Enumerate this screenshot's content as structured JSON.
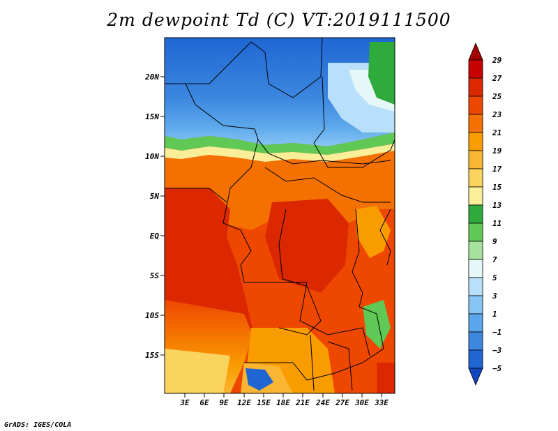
{
  "title": "2m dewpoint Td (C) VT:2019111500",
  "credit": "GrADS: IGES/COLA",
  "map": {
    "lat_labels": [
      "20N",
      "15N",
      "10N",
      "5N",
      "EQ",
      "5S",
      "10S",
      "15S"
    ],
    "lon_labels": [
      "3E",
      "6E",
      "9E",
      "12E",
      "15E",
      "18E",
      "21E",
      "24E",
      "27E",
      "30E",
      "33E"
    ]
  },
  "colorbar": {
    "labels": [
      "29",
      "27",
      "25",
      "23",
      "21",
      "19",
      "17",
      "15",
      "13",
      "11",
      "9",
      "7",
      "5",
      "3",
      "1",
      "−1",
      "−3",
      "−5"
    ],
    "colors": [
      "#a50000",
      "#c80000",
      "#dc2800",
      "#ee4800",
      "#f47000",
      "#f99c00",
      "#fab532",
      "#fbd460",
      "#fbee98",
      "#2eab3c",
      "#60c855",
      "#a6e19e",
      "#e6f7f7",
      "#b8e0fa",
      "#87c6f4",
      "#5aa6ea",
      "#3c87df",
      "#1f66d2",
      "#1244bc"
    ]
  },
  "legend_colors": {
    "humid": "#ee4800",
    "dry": "#3c87df"
  }
}
